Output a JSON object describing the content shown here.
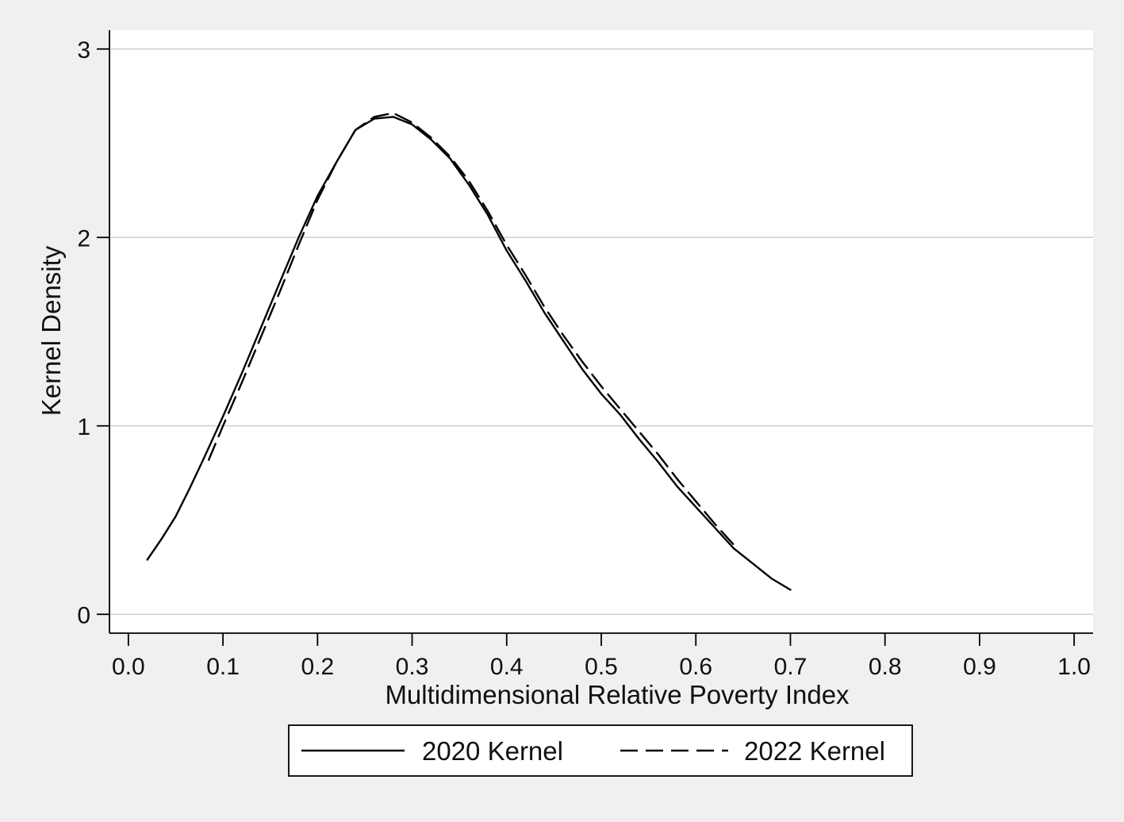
{
  "colors": {
    "page_background": "#f0f0f0",
    "plot_background": "#ffffff",
    "grid": "#c8c8c8",
    "axis": "#000000",
    "line": "#000000",
    "legend_border": "#000000"
  },
  "chart_data": {
    "type": "line",
    "title": "",
    "xlabel": "Multidimensional Relative Poverty Index",
    "ylabel": "Kernel Density",
    "xlim": [
      -0.02,
      1.02
    ],
    "ylim": [
      -0.1,
      3.1
    ],
    "x_ticks": [
      0.0,
      0.1,
      0.2,
      0.3,
      0.4,
      0.5,
      0.6,
      0.7,
      0.8,
      0.9,
      1.0
    ],
    "x_tick_labels": [
      "0.0",
      "0.1",
      "0.2",
      "0.3",
      "0.4",
      "0.5",
      "0.6",
      "0.7",
      "0.8",
      "0.9",
      "1.0"
    ],
    "y_ticks": [
      0,
      1,
      2,
      3
    ],
    "y_tick_labels": [
      "0",
      "1",
      "2",
      "3"
    ],
    "grid": "horizontal",
    "legend_position": "bottom",
    "series": [
      {
        "name": "2020 Kernel",
        "line_style": "solid",
        "x": [
          0.02,
          0.035,
          0.05,
          0.065,
          0.08,
          0.1,
          0.12,
          0.14,
          0.16,
          0.18,
          0.2,
          0.22,
          0.24,
          0.26,
          0.28,
          0.3,
          0.32,
          0.34,
          0.36,
          0.38,
          0.4,
          0.42,
          0.44,
          0.46,
          0.48,
          0.5,
          0.52,
          0.54,
          0.56,
          0.58,
          0.6,
          0.62,
          0.64,
          0.66,
          0.68,
          0.7
        ],
        "y": [
          0.29,
          0.4,
          0.52,
          0.67,
          0.83,
          1.05,
          1.28,
          1.52,
          1.76,
          2.0,
          2.22,
          2.4,
          2.57,
          2.63,
          2.64,
          2.6,
          2.52,
          2.42,
          2.28,
          2.12,
          1.93,
          1.77,
          1.6,
          1.45,
          1.3,
          1.17,
          1.06,
          0.93,
          0.81,
          0.68,
          0.57,
          0.46,
          0.35,
          0.27,
          0.19,
          0.13
        ]
      },
      {
        "name": "2022 Kernel",
        "line_style": "dashed",
        "x": [
          0.085,
          0.1,
          0.12,
          0.14,
          0.16,
          0.18,
          0.2,
          0.22,
          0.24,
          0.26,
          0.28,
          0.3,
          0.32,
          0.34,
          0.36,
          0.38,
          0.4,
          0.42,
          0.44,
          0.46,
          0.48,
          0.5,
          0.52,
          0.54,
          0.56,
          0.58,
          0.6,
          0.62,
          0.64
        ],
        "y": [
          0.82,
          1.0,
          1.23,
          1.47,
          1.71,
          1.96,
          2.2,
          2.4,
          2.57,
          2.64,
          2.66,
          2.61,
          2.53,
          2.43,
          2.3,
          2.14,
          1.96,
          1.8,
          1.63,
          1.48,
          1.34,
          1.21,
          1.09,
          0.97,
          0.85,
          0.72,
          0.6,
          0.48,
          0.37
        ]
      }
    ]
  }
}
